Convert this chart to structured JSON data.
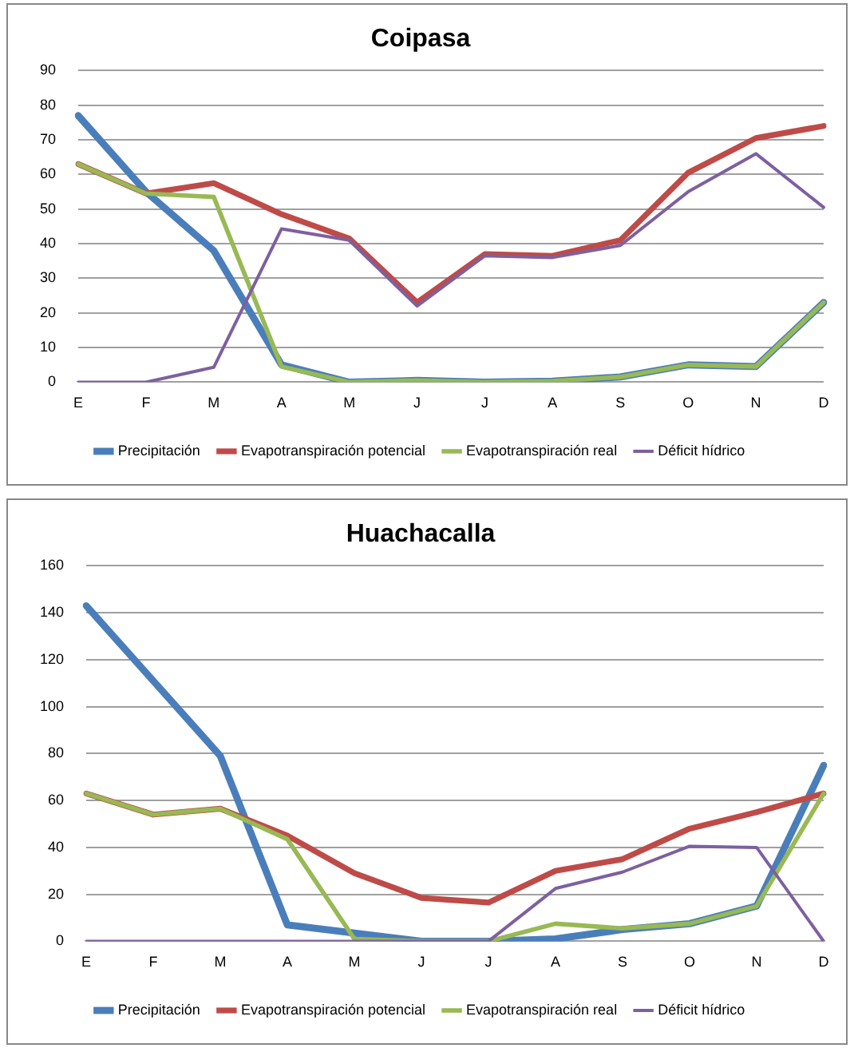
{
  "chart_data": [
    {
      "type": "line",
      "title": "Coipasa",
      "categories": [
        "E",
        "F",
        "M",
        "A",
        "M",
        "J",
        "J",
        "A",
        "S",
        "O",
        "N",
        "D"
      ],
      "ylim": [
        0,
        90
      ],
      "yticks": [
        0,
        10,
        20,
        30,
        40,
        50,
        60,
        70,
        80,
        90
      ],
      "grid": "y",
      "legend": "bottom",
      "marker": "none",
      "line_style": "solid",
      "series": [
        {
          "name": "Precipitación",
          "color": "#4a7ebb",
          "values": [
            77,
            55,
            38,
            5,
            0,
            0.5,
            0,
            0.3,
            1.5,
            5,
            4.5,
            23
          ]
        },
        {
          "name": "Evapotranspiración potencial",
          "color": "#be4b48",
          "values": [
            63,
            54.5,
            57.5,
            48.5,
            41.5,
            23,
            37,
            36.5,
            41,
            60.5,
            70.5,
            74
          ]
        },
        {
          "name": "Evapotranspiración real",
          "color": "#98b954",
          "values": [
            63,
            54.5,
            53.5,
            4.5,
            0,
            0.5,
            0,
            0.3,
            1.5,
            5,
            4.5,
            23
          ]
        },
        {
          "name": "Déficit hídrico",
          "color": "#7d60a0",
          "values": [
            0,
            0,
            4.3,
            44.3,
            41,
            22,
            36.5,
            36,
            39.5,
            55,
            66,
            50.5
          ]
        }
      ]
    },
    {
      "type": "line",
      "title": "Huachacalla",
      "categories": [
        "E",
        "F",
        "M",
        "A",
        "M",
        "J",
        "J",
        "A",
        "S",
        "O",
        "N",
        "D"
      ],
      "ylim": [
        0,
        160
      ],
      "yticks": [
        0,
        20,
        40,
        60,
        80,
        100,
        120,
        140,
        160
      ],
      "grid": "y",
      "legend": "bottom",
      "marker": "none",
      "line_style": "solid",
      "series": [
        {
          "name": "Precipitación",
          "color": "#4a7ebb",
          "values": [
            143,
            111,
            79,
            7,
            3.5,
            0,
            0,
            1,
            5,
            7.5,
            15,
            75
          ]
        },
        {
          "name": "Evapotranspiración potencial",
          "color": "#be4b48",
          "values": [
            63,
            54,
            56.5,
            45,
            29,
            18.5,
            16.5,
            30,
            35,
            48,
            55,
            63
          ]
        },
        {
          "name": "Evapotranspiración real",
          "color": "#98b954",
          "values": [
            63,
            54,
            56.5,
            43.5,
            1,
            0,
            0,
            7.5,
            5.5,
            7.5,
            15,
            63
          ]
        },
        {
          "name": "Déficit hídrico",
          "color": "#7d60a0",
          "values": [
            0,
            0,
            0,
            0,
            0,
            0,
            0,
            22.5,
            29.5,
            40.5,
            40,
            0
          ]
        }
      ]
    }
  ]
}
